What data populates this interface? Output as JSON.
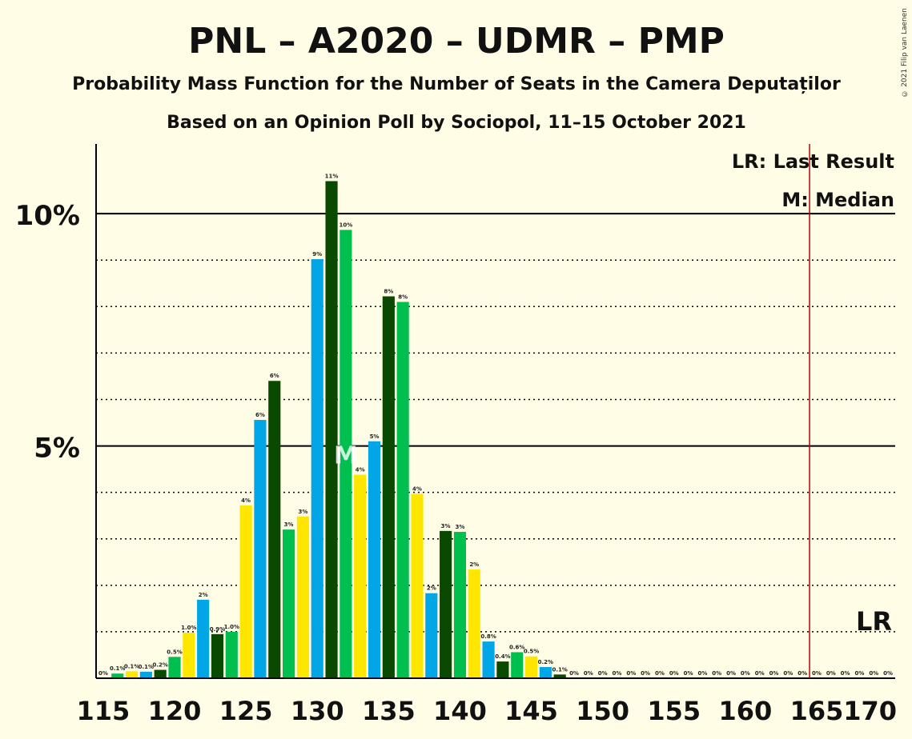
{
  "copyright": "© 2021 Filip van Laenen",
  "chart_data": {
    "type": "bar",
    "title": "PNL – A2020 – UDMR – PMP",
    "subtitle": "Probability Mass Function for the Number of Seats in the Camera Deputaților",
    "subtitle2": "Based on an Opinion Poll by Sociopol, 11–15 October 2021",
    "legend": {
      "last_result": "LR: Last Result",
      "median": "M: Median"
    },
    "lr_label": "LR",
    "median_label": "M",
    "last_result_seat": 165,
    "median_seat": 132,
    "xlim": [
      115,
      170
    ],
    "ylim": [
      0,
      11.5
    ],
    "x_ticks": [
      "115",
      "120",
      "125",
      "130",
      "135",
      "140",
      "145",
      "150",
      "155",
      "160",
      "165",
      "170"
    ],
    "y_ticks": [
      {
        "value": 5,
        "label": "5%"
      },
      {
        "value": 10,
        "label": "10%"
      }
    ],
    "colors": [
      "#0A4A00",
      "#00BF4F",
      "#FFE600",
      "#00A6E6"
    ],
    "color_sequence_start": 115,
    "seats": [
      115,
      116,
      117,
      118,
      119,
      120,
      121,
      122,
      123,
      124,
      125,
      126,
      127,
      128,
      129,
      130,
      131,
      132,
      133,
      134,
      135,
      136,
      137,
      138,
      139,
      140,
      141,
      142,
      143,
      144,
      145,
      146,
      147,
      148,
      149,
      150,
      151,
      152,
      153,
      154,
      155,
      156,
      157,
      158,
      159,
      160,
      161,
      162,
      163,
      164,
      165,
      166,
      167,
      168,
      169,
      170
    ],
    "values": [
      0,
      0.1,
      0.15,
      0.14,
      0.18,
      0.46,
      0.98,
      1.69,
      0.95,
      1.0,
      3.72,
      5.56,
      6.4,
      3.2,
      3.48,
      9.02,
      10.7,
      9.65,
      4.38,
      5.1,
      8.22,
      8.1,
      3.97,
      1.83,
      3.17,
      3.15,
      2.34,
      0.79,
      0.36,
      0.56,
      0.47,
      0.24,
      0.08,
      0,
      0,
      0,
      0,
      0,
      0,
      0,
      0,
      0,
      0,
      0,
      0,
      0,
      0,
      0,
      0,
      0,
      0,
      0,
      0,
      0,
      0,
      0
    ],
    "labels": [
      "0%",
      "0.1%",
      "0.1%",
      "0.1%",
      "0.2%",
      "0.5%",
      "1.0%",
      "2%",
      "0.9%",
      "1.0%",
      "4%",
      "6%",
      "6%",
      "3%",
      "3%",
      "9%",
      "11%",
      "10%",
      "4%",
      "5%",
      "8%",
      "8%",
      "4%",
      "2%",
      "3%",
      "3%",
      "2%",
      "0.8%",
      "0.4%",
      "0.6%",
      "0.5%",
      "0.2%",
      "0.1%",
      "0%",
      "0%",
      "0%",
      "0%",
      "0%",
      "0%",
      "0%",
      "0%",
      "0%",
      "0%",
      "0%",
      "0%",
      "0%",
      "0%",
      "0%",
      "0%",
      "0%",
      "0%",
      "0%",
      "0%",
      "0%",
      "0%",
      "0%"
    ]
  }
}
